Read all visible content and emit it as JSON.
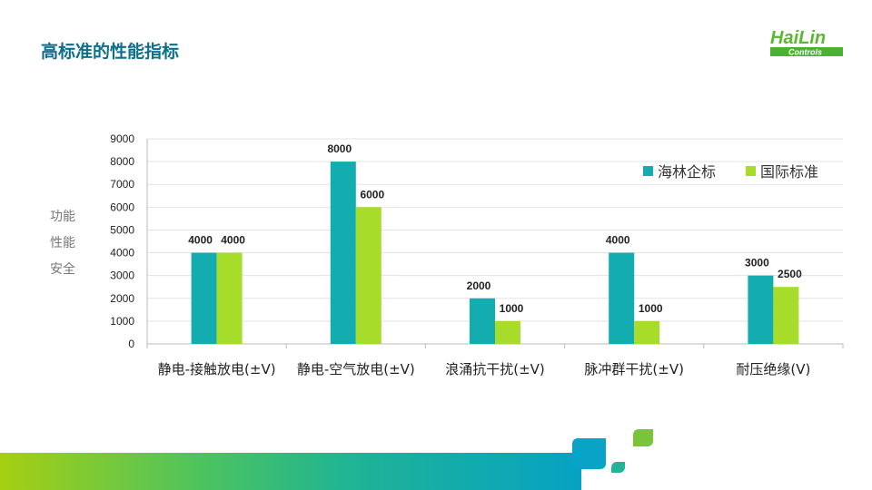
{
  "header": {
    "title": "高标准的性能指标"
  },
  "logo": {
    "text_main": "HaiLin",
    "text_sub": "Controls"
  },
  "chart_data": {
    "type": "bar",
    "title": "",
    "ylabel": "功能\n性能\n安全",
    "ylabel_lines": [
      "功能",
      "性能",
      "安全"
    ],
    "xlabel": "",
    "ylim": [
      0,
      9000
    ],
    "yticks": [
      0,
      1000,
      2000,
      3000,
      4000,
      5000,
      6000,
      7000,
      8000,
      9000
    ],
    "grid": true,
    "legend_position": "top-right",
    "categories": [
      "静电-接触放电(±V)",
      "静电-空气放电(±V)",
      "浪涌抗干扰(±V)",
      "脉冲群干扰(±V)",
      "耐压绝缘(V)"
    ],
    "series": [
      {
        "name": "海林企标",
        "color": "#13adb0",
        "values": [
          4000,
          8000,
          2000,
          4000,
          3000
        ]
      },
      {
        "name": "国际标准",
        "color": "#a8dc2a",
        "values": [
          4000,
          6000,
          1000,
          1000,
          2500
        ]
      }
    ]
  }
}
